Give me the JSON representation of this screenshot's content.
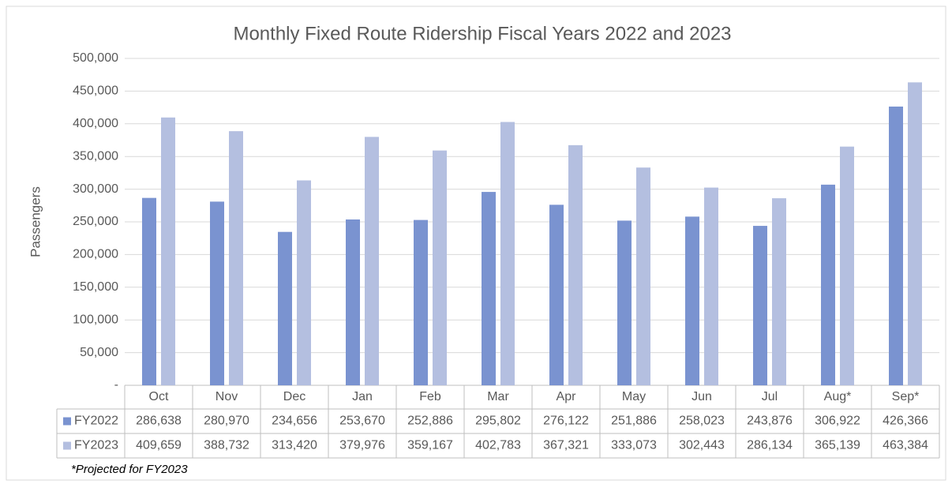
{
  "chart_data": {
    "type": "bar",
    "title": "Monthly Fixed Route Ridership Fiscal Years 2022 and 2023",
    "ylabel": "Passengers",
    "note": "*Projected for FY2023",
    "categories": [
      "Oct",
      "Nov",
      "Dec",
      "Jan",
      "Feb",
      "Mar",
      "Apr",
      "May",
      "Jun",
      "Jul",
      "Aug*",
      "Sep*"
    ],
    "series": [
      {
        "name": "FY2022",
        "color": "#7a93d0",
        "values": [
          286638,
          280970,
          234656,
          253670,
          252886,
          295802,
          276122,
          251886,
          258023,
          243876,
          306922,
          426366
        ],
        "value_labels": [
          "286,638",
          "280,970",
          "234,656",
          "253,670",
          "252,886",
          "295,802",
          "276,122",
          "251,886",
          "258,023",
          "243,876",
          "306,922",
          "426,366"
        ]
      },
      {
        "name": "FY2023",
        "color": "#b4bfe0",
        "values": [
          409659,
          388732,
          313420,
          379976,
          359167,
          402783,
          367321,
          333073,
          302443,
          286134,
          365139,
          463384
        ],
        "value_labels": [
          "409,659",
          "388,732",
          "313,420",
          "379,976",
          "359,167",
          "402,783",
          "367,321",
          "333,073",
          "302,443",
          "286,134",
          "365,139",
          "463,384"
        ]
      }
    ],
    "ylim": [
      0,
      500000
    ],
    "yticks": [
      {
        "value": 0,
        "label": "-"
      },
      {
        "value": 50000,
        "label": "50,000"
      },
      {
        "value": 100000,
        "label": "100,000"
      },
      {
        "value": 150000,
        "label": "150,000"
      },
      {
        "value": 200000,
        "label": "200,000"
      },
      {
        "value": 250000,
        "label": "250,000"
      },
      {
        "value": 300000,
        "label": "300,000"
      },
      {
        "value": 350000,
        "label": "350,000"
      },
      {
        "value": 400000,
        "label": "400,000"
      },
      {
        "value": 450000,
        "label": "450,000"
      },
      {
        "value": 500000,
        "label": "500,000"
      }
    ],
    "grid": true,
    "legend": "table"
  }
}
